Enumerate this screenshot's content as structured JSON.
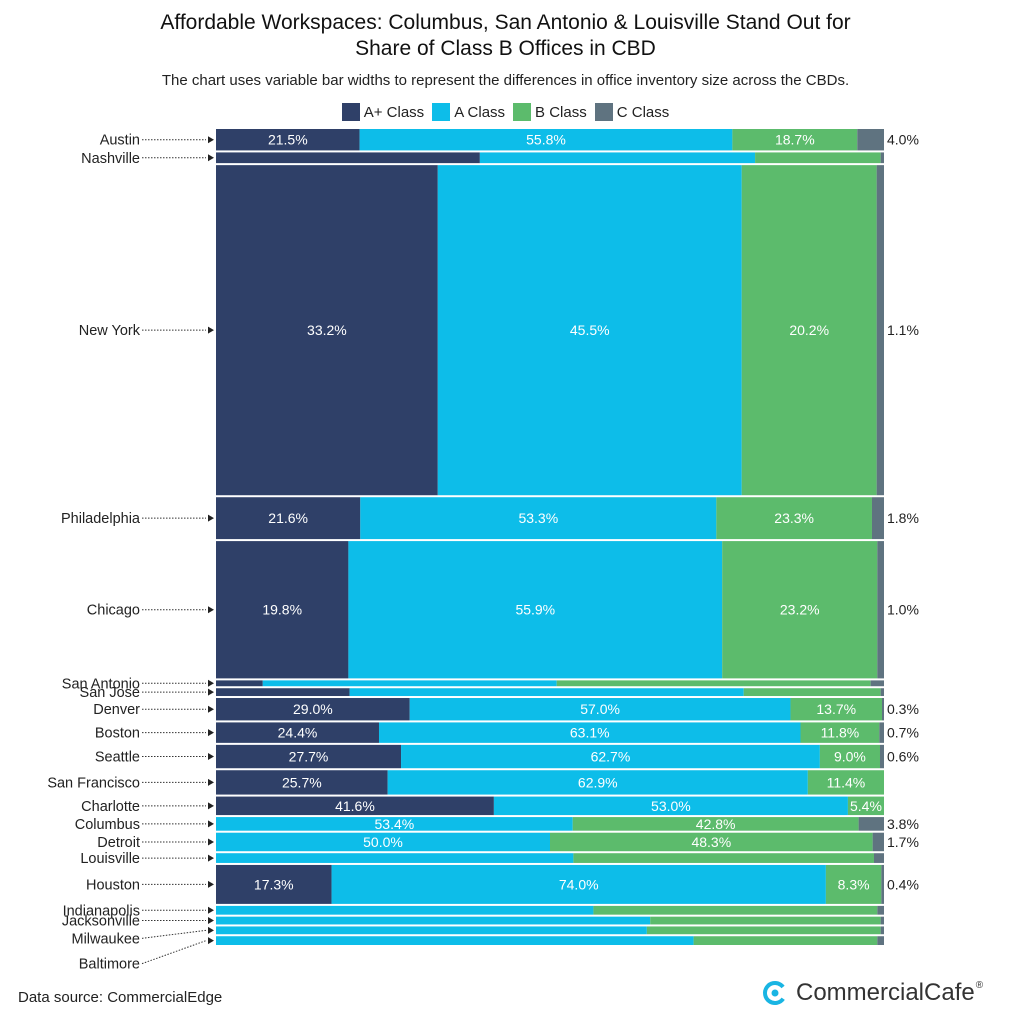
{
  "title_lines": [
    "Affordable Workspaces: Columbus, San Antonio & Louisville Stand Out for",
    "Share of Class B Offices in CBD"
  ],
  "subtitle": "The chart uses variable bar widths to represent the differences in office inventory size across the CBDs.",
  "source": "Data source: CommercialEdge",
  "brand": {
    "name": "CommercialCafe",
    "mark": "®"
  },
  "colors": {
    "A+ Class": "#2f4068",
    "A Class": "#0dbde9",
    "B Class": "#5cbb6c",
    "C Class": "#5f7380"
  },
  "chart_data": {
    "type": "bar",
    "subtype": "marimekko-horizontal-100pct-stacked",
    "title": "Affordable Workspaces: Columbus, San Antonio & Louisville Stand Out for Share of Class B Offices in CBD",
    "subtitle": "The chart uses variable bar widths to represent the differences in office inventory size across the CBDs.",
    "xlim": [
      0,
      100
    ],
    "legend_position": "top-center",
    "series": [
      {
        "name": "A+ Class",
        "color": "#2f4068"
      },
      {
        "name": "A Class",
        "color": "#0dbde9"
      },
      {
        "name": "B Class",
        "color": "#5cbb6c"
      },
      {
        "name": "C Class",
        "color": "#5f7380"
      }
    ],
    "categories": [
      {
        "name": "Austin",
        "rel_size": 22,
        "values": [
          21.5,
          55.8,
          18.7,
          4.0
        ],
        "labels": [
          "21.5%",
          "55.8%",
          "18.7%",
          "4.0%"
        ]
      },
      {
        "name": "Nashville",
        "rel_size": 11,
        "values": [
          39.5,
          41.2,
          18.8,
          0.5
        ],
        "labels": [
          "",
          "",
          "",
          ""
        ]
      },
      {
        "name": "New York",
        "rel_size": 339,
        "values": [
          33.2,
          45.5,
          20.2,
          1.1
        ],
        "labels": [
          "33.2%",
          "45.5%",
          "20.2%",
          "1.1%"
        ]
      },
      {
        "name": "Philadelphia",
        "rel_size": 43,
        "values": [
          21.6,
          53.3,
          23.3,
          1.8
        ],
        "labels": [
          "21.6%",
          "53.3%",
          "23.3%",
          "1.8%"
        ]
      },
      {
        "name": "Chicago",
        "rel_size": 141,
        "values": [
          19.8,
          55.9,
          23.2,
          1.0
        ],
        "labels": [
          "19.8%",
          "55.9%",
          "23.2%",
          "1.0%"
        ]
      },
      {
        "name": "San Antonio",
        "rel_size": 6,
        "values": [
          7.0,
          44.0,
          47.0,
          2.0
        ],
        "labels": [
          "",
          "",
          "",
          ""
        ]
      },
      {
        "name": "San Jose",
        "rel_size": 8,
        "values": [
          20.0,
          59.0,
          20.5,
          0.5
        ],
        "labels": [
          "",
          "",
          "",
          ""
        ]
      },
      {
        "name": "Denver",
        "rel_size": 23,
        "values": [
          29.0,
          57.0,
          13.7,
          0.3
        ],
        "labels": [
          "29.0%",
          "57.0%",
          "13.7%",
          "0.3%"
        ]
      },
      {
        "name": "Boston",
        "rel_size": 21,
        "values": [
          24.4,
          63.1,
          11.8,
          0.7
        ],
        "labels": [
          "24.4%",
          "63.1%",
          "11.8%",
          "0.7%"
        ]
      },
      {
        "name": "Seattle",
        "rel_size": 24,
        "values": [
          27.7,
          62.7,
          9.0,
          0.6
        ],
        "labels": [
          "27.7%",
          "62.7%",
          "9.0%",
          "0.6%"
        ]
      },
      {
        "name": "San Francisco",
        "rel_size": 25,
        "values": [
          25.7,
          62.9,
          11.4,
          0.0
        ],
        "labels": [
          "25.7%",
          "62.9%",
          "11.4%",
          ""
        ]
      },
      {
        "name": "Charlotte",
        "rel_size": 19,
        "values": [
          41.6,
          53.0,
          5.4,
          0.0
        ],
        "labels": [
          "41.6%",
          "53.0%",
          "5.4%",
          ""
        ]
      },
      {
        "name": "Columbus",
        "rel_size": 14,
        "values": [
          0.0,
          53.4,
          42.8,
          3.8
        ],
        "labels": [
          "",
          "53.4%",
          "42.8%",
          "3.8%"
        ]
      },
      {
        "name": "Detroit",
        "rel_size": 19,
        "values": [
          0.0,
          50.0,
          48.3,
          1.7
        ],
        "labels": [
          "",
          "50.0%",
          "48.3%",
          "1.7%"
        ]
      },
      {
        "name": "Louisville",
        "rel_size": 10,
        "values": [
          0.0,
          53.5,
          45.0,
          1.5
        ],
        "labels": [
          "",
          "",
          "",
          ""
        ]
      },
      {
        "name": "Houston",
        "rel_size": 40,
        "values": [
          17.3,
          74.0,
          8.3,
          0.4
        ],
        "labels": [
          "17.3%",
          "74.0%",
          "8.3%",
          "0.4%"
        ]
      },
      {
        "name": "Indianapolis",
        "rel_size": 9,
        "values": [
          0.0,
          56.5,
          42.5,
          1.0
        ],
        "labels": [
          "",
          "",
          "",
          ""
        ]
      },
      {
        "name": "Jacksonville",
        "rel_size": 8,
        "values": [
          0.0,
          65.0,
          34.5,
          0.5
        ],
        "labels": [
          "",
          "",
          "",
          ""
        ]
      },
      {
        "name": "Milwaukee",
        "rel_size": 8,
        "values": [
          0.0,
          64.5,
          35.0,
          0.5
        ],
        "labels": [
          "",
          "",
          "",
          ""
        ]
      },
      {
        "name": "Baltimore",
        "rel_size": 9,
        "values": [
          0.0,
          71.5,
          27.5,
          1.0
        ],
        "labels": [
          "",
          "",
          "",
          ""
        ]
      }
    ]
  }
}
